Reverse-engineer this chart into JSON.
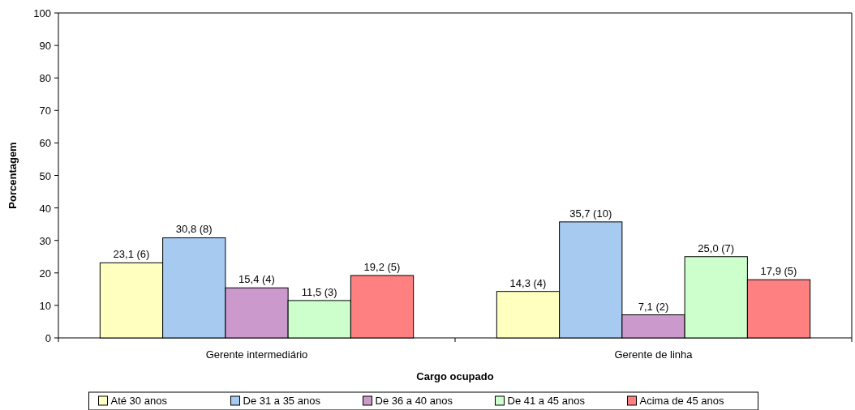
{
  "chart_data": {
    "type": "bar",
    "categories": [
      "Gerente intermediário",
      "Gerente de linha"
    ],
    "xlabel": "Cargo ocupado",
    "ylabel": "Porcentagem",
    "ylim": [
      0,
      100
    ],
    "yticks": [
      0,
      10,
      20,
      30,
      40,
      50,
      60,
      70,
      80,
      90,
      100
    ],
    "grid": false,
    "legend": "bottom",
    "series": [
      {
        "name": "Até 30 anos",
        "color": "#ffffc0",
        "values": [
          23.1,
          14.3
        ],
        "value_labels": [
          "23,1 (6)",
          "14,3 (4)"
        ]
      },
      {
        "name": "De 31 a 35 anos",
        "color": "#a6caf0",
        "values": [
          30.8,
          35.7
        ],
        "value_labels": [
          "30,8 (8)",
          "35,7 (10)"
        ]
      },
      {
        "name": "De 36 a 40 anos",
        "color": "#cc99cc",
        "values": [
          15.4,
          7.1
        ],
        "value_labels": [
          "15,4 (4)",
          "7,1 (2)"
        ]
      },
      {
        "name": "De 41 a 45 anos",
        "color": "#ccffcc",
        "values": [
          11.5,
          25.0
        ],
        "value_labels": [
          "11,5 (3)",
          "25,0 (7)"
        ]
      },
      {
        "name": "Acima de 45 anos",
        "color": "#ff8080",
        "values": [
          19.2,
          17.9
        ],
        "value_labels": [
          "19,2 (5)",
          "17,9 (5)"
        ]
      }
    ]
  }
}
